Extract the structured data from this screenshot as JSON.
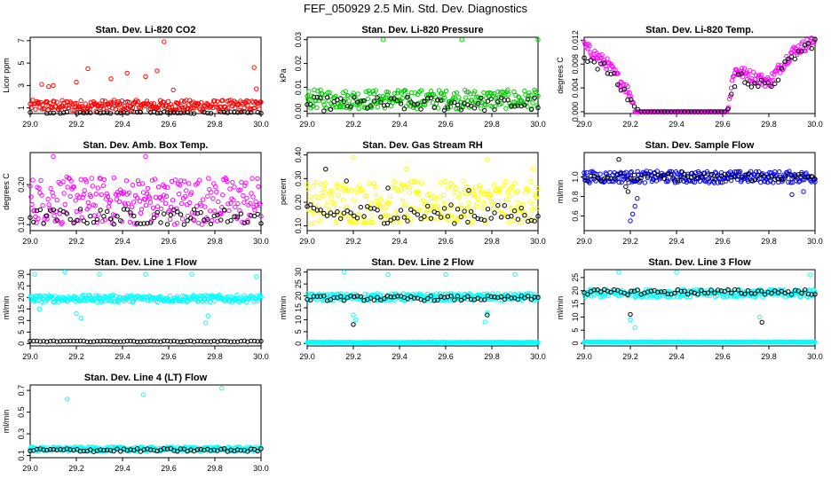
{
  "page": {
    "title": "FEF_050929  2.5 Min. Std. Dev. Diagnostics"
  },
  "colors": {
    "black": "#000000",
    "red": "#ff0000",
    "green": "#00cc00",
    "magenta": "#ff00ff",
    "yellow": "#ffff00",
    "blue": "#0000ff",
    "cyan": "#00ffff"
  },
  "chart_data": [
    {
      "id": "co2",
      "type": "scatter",
      "title": "Stan. Dev. Li-820 CO2",
      "ylabel": "Licor ppm",
      "xlim": [
        29.0,
        30.0
      ],
      "ylim": [
        0.5,
        7.3
      ],
      "xticks": [
        "29.0",
        "29.2",
        "29.4",
        "29.6",
        "29.8",
        "30.0"
      ],
      "yticks": [
        "1",
        "3",
        "5",
        "7"
      ],
      "series": [
        {
          "color": "#ff0000",
          "base": 1.2,
          "spread": 0.5,
          "outliers": [
            [
              29.05,
              3.1
            ],
            [
              29.08,
              2.9
            ],
            [
              29.1,
              3.0
            ],
            [
              29.2,
              3.3
            ],
            [
              29.25,
              4.5
            ],
            [
              29.35,
              3.6
            ],
            [
              29.42,
              4.1
            ],
            [
              29.5,
              3.8
            ],
            [
              29.55,
              4.3
            ],
            [
              29.58,
              6.9
            ],
            [
              29.62,
              2.6
            ],
            [
              29.97,
              4.6
            ],
            [
              29.98,
              2.7
            ]
          ]
        },
        {
          "color": "#000000",
          "base": 0.55,
          "spread": 0.1,
          "outliers": []
        }
      ]
    },
    {
      "id": "pressure",
      "type": "scatter",
      "title": "Stan. Dev. Li-820 Pressure",
      "ylabel": "kPa",
      "xlim": [
        29.0,
        30.0
      ],
      "ylim": [
        -0.001,
        0.031
      ],
      "xticks": [
        "29.0",
        "29.2",
        "29.4",
        "29.6",
        "29.8",
        "30.0"
      ],
      "yticks": [
        "0.00",
        "0.01",
        "0.02",
        "0.03"
      ],
      "series": [
        {
          "color": "#00cc00",
          "base": 0.005,
          "spread": 0.004,
          "outliers": [
            [
              29.33,
              0.03
            ],
            [
              29.67,
              0.03
            ],
            [
              30.0,
              0.03
            ]
          ]
        },
        {
          "color": "#000000",
          "base": 0.003,
          "spread": 0.003,
          "outliers": []
        }
      ]
    },
    {
      "id": "li_temp",
      "type": "scatter",
      "title": "Stan. Dev. Li-820 Temp.",
      "ylabel": "degrees C",
      "xlim": [
        29.0,
        30.0
      ],
      "ylim": [
        -0.0003,
        0.0125
      ],
      "xticks": [
        "29.0",
        "29.2",
        "29.4",
        "29.6",
        "29.8",
        "30.0"
      ],
      "yticks": [
        "0.000",
        "0.004",
        "0.008",
        "0.012"
      ],
      "series": [
        {
          "color": "#ff00ff",
          "base": 0.0,
          "spread": 0.0,
          "profile": [
            [
              29.0,
              0.011
            ],
            [
              29.1,
              0.008
            ],
            [
              29.2,
              0.003
            ],
            [
              29.22,
              0.0
            ],
            [
              29.62,
              0.0
            ],
            [
              29.65,
              0.007
            ],
            [
              29.8,
              0.005
            ],
            [
              29.9,
              0.01
            ],
            [
              30.0,
              0.012
            ]
          ]
        },
        {
          "color": "#000000",
          "base": 0.0,
          "spread": 0.0,
          "profile": [
            [
              29.0,
              0.0095
            ],
            [
              29.1,
              0.007
            ],
            [
              29.2,
              0.002
            ],
            [
              29.24,
              0.0
            ],
            [
              29.62,
              0.0
            ],
            [
              29.66,
              0.006
            ],
            [
              29.8,
              0.004
            ],
            [
              29.9,
              0.009
            ],
            [
              30.0,
              0.012
            ]
          ]
        }
      ]
    },
    {
      "id": "box_temp",
      "type": "scatter",
      "title": "Stan. Dev. Amb. Box Temp.",
      "ylabel": "degrees C",
      "xlim": [
        29.0,
        30.0
      ],
      "ylim": [
        0.085,
        0.28
      ],
      "xticks": [
        "29.0",
        "29.2",
        "29.4",
        "29.6",
        "29.8",
        "30.0"
      ],
      "yticks": [
        "0.10",
        "0.20"
      ],
      "series": [
        {
          "color": "#ff00ff",
          "base": 0.16,
          "spread": 0.06,
          "outliers": [
            [
              29.1,
              0.27
            ],
            [
              29.5,
              0.27
            ]
          ]
        },
        {
          "color": "#000000",
          "base": 0.12,
          "spread": 0.02,
          "outliers": []
        }
      ]
    },
    {
      "id": "rh",
      "type": "scatter",
      "title": "Stan. Dev. Gas Stream RH",
      "ylabel": "percent",
      "xlim": [
        29.0,
        30.0
      ],
      "ylim": [
        0.08,
        0.41
      ],
      "xticks": [
        "29.0",
        "29.2",
        "29.4",
        "29.6",
        "29.8",
        "30.0"
      ],
      "yticks": [
        "0.10",
        "0.20",
        "0.30",
        "0.40"
      ],
      "series": [
        {
          "color": "#ffff00",
          "base": 0.2,
          "spread": 0.09,
          "outliers": [
            [
              29.2,
              0.39
            ],
            [
              29.43,
              0.34
            ],
            [
              29.78,
              0.38
            ],
            [
              29.98,
              0.34
            ]
          ]
        },
        {
          "color": "#000000",
          "base": 0.15,
          "spread": 0.04,
          "outliers": [
            [
              29.08,
              0.34
            ],
            [
              29.17,
              0.29
            ],
            [
              29.35,
              0.26
            ],
            [
              29.7,
              0.25
            ]
          ]
        }
      ]
    },
    {
      "id": "sample_flow",
      "type": "scatter",
      "title": "Stan. Dev. Sample Flow",
      "ylabel": "ml/min",
      "xlim": [
        29.0,
        30.0
      ],
      "ylim": [
        0.45,
        1.25
      ],
      "xticks": [
        "29.0",
        "29.2",
        "29.4",
        "29.6",
        "29.8",
        "30.0"
      ],
      "yticks": [
        "0.6",
        "0.8",
        "1.0"
      ],
      "series": [
        {
          "color": "#0000ff",
          "base": 1.0,
          "spread": 0.06,
          "outliers": [
            [
              29.2,
              0.55
            ],
            [
              29.21,
              0.62
            ],
            [
              29.22,
              0.7
            ],
            [
              29.23,
              0.78
            ],
            [
              29.9,
              0.82
            ],
            [
              29.95,
              0.85
            ]
          ]
        },
        {
          "color": "#000000",
          "base": 1.0,
          "spread": 0.04,
          "outliers": [
            [
              29.15,
              1.18
            ],
            [
              29.18,
              0.9
            ],
            [
              29.19,
              0.85
            ]
          ]
        }
      ]
    },
    {
      "id": "line1",
      "type": "scatter",
      "title": "Stan. Dev. Line 1 Flow",
      "ylabel": "ml/min",
      "xlim": [
        29.0,
        30.0
      ],
      "ylim": [
        -1,
        32
      ],
      "xticks": [
        "29.0",
        "29.2",
        "29.4",
        "29.6",
        "29.8",
        "30.0"
      ],
      "yticks": [
        "0",
        "5",
        "10",
        "15",
        "20",
        "25",
        "30"
      ],
      "series": [
        {
          "color": "#00ffff",
          "base": 19.5,
          "spread": 1.5,
          "outliers": [
            [
              29.02,
              30
            ],
            [
              29.15,
              31
            ],
            [
              29.3,
              30
            ],
            [
              29.5,
              30
            ],
            [
              29.7,
              30
            ],
            [
              29.98,
              29
            ],
            [
              29.2,
              13
            ],
            [
              29.22,
              11
            ],
            [
              29.76,
              9
            ],
            [
              29.77,
              12
            ],
            [
              29.04,
              15
            ]
          ]
        },
        {
          "color": "#000000",
          "base": 1.0,
          "spread": 0.2,
          "outliers": []
        }
      ]
    },
    {
      "id": "line2",
      "type": "scatter",
      "title": "Stan. Dev. Line 2 Flow",
      "ylabel": "ml/min",
      "xlim": [
        29.0,
        30.0
      ],
      "ylim": [
        -1,
        31
      ],
      "xticks": [
        "29.0",
        "29.2",
        "29.4",
        "29.6",
        "29.8",
        "30.0"
      ],
      "yticks": [
        "0",
        "5",
        "10",
        "15",
        "20",
        "25",
        "30"
      ],
      "series": [
        {
          "color": "#00ffff",
          "base": 19.5,
          "spread": 1.5,
          "outliers": [
            [
              29.16,
              30
            ],
            [
              29.35,
              29
            ],
            [
              29.6,
              29
            ],
            [
              29.9,
              29
            ],
            [
              29.2,
              12
            ],
            [
              29.21,
              10
            ],
            [
              29.77,
              9
            ],
            [
              29.78,
              13
            ]
          ]
        },
        {
          "color": "#00ffff",
          "base": 0.5,
          "spread": 0.1,
          "outliers": []
        },
        {
          "color": "#000000",
          "base": 19.0,
          "spread": 1.0,
          "outliers": [
            [
              29.2,
              8
            ],
            [
              29.78,
              12
            ]
          ]
        }
      ]
    },
    {
      "id": "line3",
      "type": "scatter",
      "title": "Stan. Dev. Line 3 Flow",
      "ylabel": "ml/min",
      "xlim": [
        29.0,
        30.0
      ],
      "ylim": [
        -1,
        28
      ],
      "xticks": [
        "29.0",
        "29.2",
        "29.4",
        "29.6",
        "29.8",
        "30.0"
      ],
      "yticks": [
        "0",
        "5",
        "10",
        "15",
        "20",
        "25"
      ],
      "series": [
        {
          "color": "#00ffff",
          "base": 19.0,
          "spread": 1.5,
          "outliers": [
            [
              29.15,
              27
            ],
            [
              29.4,
              27
            ],
            [
              29.98,
              26
            ],
            [
              29.2,
              9
            ],
            [
              29.22,
              6
            ],
            [
              29.76,
              10
            ]
          ]
        },
        {
          "color": "#00ffff",
          "base": 0.5,
          "spread": 0.1,
          "outliers": []
        },
        {
          "color": "#000000",
          "base": 19.5,
          "spread": 1.0,
          "outliers": [
            [
              29.2,
              11
            ],
            [
              29.77,
              8
            ]
          ]
        }
      ]
    },
    {
      "id": "line4",
      "type": "scatter",
      "title": "Stan. Dev. Line 4 (LT) Flow",
      "ylabel": "ml/min",
      "xlim": [
        29.0,
        30.0
      ],
      "ylim": [
        0.08,
        0.75
      ],
      "xticks": [
        "29.0",
        "29.2",
        "29.4",
        "29.6",
        "29.8",
        "30.0"
      ],
      "yticks": [
        "0.1",
        "0.3",
        "0.5",
        "0.7"
      ],
      "series": [
        {
          "color": "#00ffff",
          "base": 0.16,
          "spread": 0.02,
          "outliers": [
            [
              29.16,
              0.62
            ],
            [
              29.49,
              0.66
            ],
            [
              29.83,
              0.72
            ]
          ]
        },
        {
          "color": "#000000",
          "base": 0.15,
          "spread": 0.015,
          "outliers": []
        }
      ]
    }
  ]
}
